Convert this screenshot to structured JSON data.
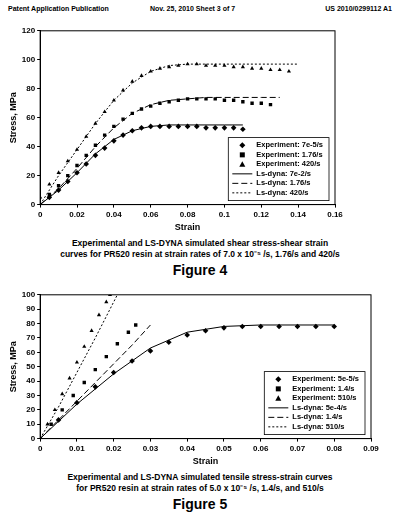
{
  "header": {
    "left": "Patent Application Publication",
    "middle": "Nov. 25, 2010  Sheet 3 of 7",
    "right": "US 2010/0299112 A1"
  },
  "figures": [
    {
      "caption": [
        "Experimental and LS-DYNA simulated shear stress-shear strain",
        "curves for PR520 resin at strain rates of 7.0 x 10⁻⁵ /s, 1.76/s and 420/s"
      ],
      "label": "Figure 4"
    },
    {
      "caption": [
        "Experimental and LS-DYNA simulated tensile stress-strain curves",
        "for PR520 resin at strain rates of 5.0 x 10⁻⁵ /s, 1.4/s, and 510/s"
      ],
      "label": "Figure 5"
    }
  ],
  "chart_data": [
    {
      "type": "scatter",
      "x_label": "Strain",
      "y_label": "Stress, MPa",
      "xlim": [
        0,
        0.16
      ],
      "xticks": [
        0,
        0.02,
        0.04,
        0.06,
        0.08,
        0.1,
        0.12,
        0.14,
        0.16
      ],
      "ylim": [
        0,
        120
      ],
      "yticks": [
        0,
        20,
        40,
        60,
        80,
        100,
        120
      ],
      "grid": false,
      "legend": "lower right",
      "series": [
        {
          "name": "Experiment: 7e-5/s",
          "type": "scatter",
          "marker": "diamond",
          "color": "#000000",
          "x": [
            0,
            0.005,
            0.01,
            0.015,
            0.02,
            0.025,
            0.03,
            0.035,
            0.04,
            0.045,
            0.05,
            0.055,
            0.06,
            0.065,
            0.07,
            0.075,
            0.08,
            0.085,
            0.09,
            0.095,
            0.1,
            0.105,
            0.11
          ],
          "values": [
            0,
            5,
            10,
            16,
            22,
            28,
            34,
            39,
            44,
            48,
            51,
            53,
            54,
            54,
            54,
            54,
            54,
            54,
            53,
            53,
            53,
            53,
            52
          ]
        },
        {
          "name": "Experiment: 1.76/s",
          "type": "scatter",
          "marker": "square",
          "color": "#000000",
          "x": [
            0,
            0.005,
            0.01,
            0.015,
            0.02,
            0.025,
            0.03,
            0.035,
            0.04,
            0.045,
            0.05,
            0.055,
            0.06,
            0.065,
            0.07,
            0.075,
            0.08,
            0.085,
            0.09,
            0.095,
            0.1,
            0.105,
            0.11,
            0.115,
            0.12,
            0.125
          ],
          "values": [
            0,
            7,
            13,
            20,
            27,
            34,
            41,
            48,
            54,
            59,
            63,
            66,
            68,
            70,
            71,
            72,
            73,
            73,
            73,
            73,
            72,
            72,
            71,
            70,
            70,
            69
          ]
        },
        {
          "name": "Experiment: 420/s",
          "type": "scatter",
          "marker": "triangle",
          "color": "#000000",
          "x": [
            0,
            0.005,
            0.01,
            0.015,
            0.02,
            0.025,
            0.03,
            0.035,
            0.04,
            0.045,
            0.05,
            0.055,
            0.06,
            0.065,
            0.07,
            0.075,
            0.08,
            0.085,
            0.09,
            0.095,
            0.1,
            0.105,
            0.11,
            0.115,
            0.12,
            0.125,
            0.13,
            0.135
          ],
          "values": [
            5,
            14,
            22,
            30,
            38,
            47,
            56,
            64,
            72,
            79,
            85,
            89,
            92,
            94,
            95,
            96,
            97,
            97,
            96,
            96,
            96,
            95,
            95,
            94,
            94,
            93,
            93,
            92
          ]
        },
        {
          "name": "Ls-dyna: 7e-2/s",
          "type": "line",
          "line_style": "solid",
          "color": "#000000",
          "x": [
            0,
            0.01,
            0.02,
            0.03,
            0.04,
            0.05,
            0.06,
            0.07,
            0.08,
            0.09,
            0.1,
            0.11
          ],
          "values": [
            0,
            10,
            22,
            35,
            45,
            51,
            54,
            55,
            55,
            55,
            55,
            55
          ]
        },
        {
          "name": "Ls-dyna: 1.76/s",
          "type": "line",
          "line_style": "dashed",
          "color": "#000000",
          "x": [
            0,
            0.01,
            0.02,
            0.03,
            0.04,
            0.05,
            0.06,
            0.07,
            0.08,
            0.09,
            0.1,
            0.11,
            0.12,
            0.13
          ],
          "values": [
            0,
            11,
            25,
            40,
            53,
            63,
            69,
            72,
            73,
            74,
            74,
            74,
            74,
            74
          ]
        },
        {
          "name": "Ls-dyna: 420/s",
          "type": "line",
          "line_style": "dotted",
          "color": "#000000",
          "x": [
            0,
            0.01,
            0.02,
            0.03,
            0.04,
            0.05,
            0.06,
            0.07,
            0.08,
            0.09,
            0.1,
            0.11,
            0.12,
            0.13,
            0.14
          ],
          "values": [
            0,
            20,
            38,
            56,
            72,
            84,
            92,
            96,
            97,
            97,
            97,
            97,
            97,
            97,
            97
          ]
        }
      ]
    },
    {
      "type": "scatter",
      "x_label": "Strain",
      "y_label": "Stress, MPa",
      "xlim": [
        0,
        0.09
      ],
      "xticks": [
        0,
        0.01,
        0.02,
        0.03,
        0.04,
        0.05,
        0.06,
        0.07,
        0.08,
        0.09
      ],
      "ylim": [
        0,
        100
      ],
      "yticks": [
        0,
        10,
        20,
        30,
        40,
        50,
        60,
        70,
        80,
        90,
        100
      ],
      "grid": false,
      "legend": "lower right",
      "series": [
        {
          "name": "Experiment: 5e-5/s",
          "type": "scatter",
          "marker": "diamond",
          "color": "#000000",
          "x": [
            0,
            0.005,
            0.01,
            0.015,
            0.02,
            0.025,
            0.03,
            0.035,
            0.04,
            0.045,
            0.05,
            0.055,
            0.06,
            0.065,
            0.07,
            0.075,
            0.08
          ],
          "values": [
            0,
            13,
            25,
            36,
            46,
            54,
            61,
            67,
            72,
            75,
            77,
            78,
            78,
            78,
            78,
            78,
            78
          ]
        },
        {
          "name": "Experiment: 1.4/s",
          "type": "scatter",
          "marker": "square",
          "color": "#000000",
          "x": [
            0,
            0.003,
            0.006,
            0.009,
            0.012,
            0.015,
            0.018,
            0.021,
            0.024,
            0.026
          ],
          "values": [
            0,
            10,
            20,
            30,
            39,
            48,
            57,
            66,
            74,
            79
          ]
        },
        {
          "name": "Experiment: 510/s",
          "type": "scatter",
          "marker": "triangle",
          "color": "#000000",
          "x": [
            0,
            0.002,
            0.004,
            0.006,
            0.008,
            0.01,
            0.012,
            0.014,
            0.016,
            0.018,
            0.019
          ],
          "values": [
            0,
            10,
            20,
            31,
            42,
            53,
            64,
            75,
            86,
            95,
            100
          ]
        },
        {
          "name": "Ls-dyna: 5e-4/s",
          "type": "line",
          "line_style": "solid",
          "color": "#000000",
          "x": [
            0,
            0.01,
            0.02,
            0.03,
            0.04,
            0.05,
            0.06,
            0.07,
            0.08
          ],
          "values": [
            0,
            24,
            45,
            63,
            74,
            78,
            79,
            79,
            79
          ]
        },
        {
          "name": "Ls-dyna: 1.4/s",
          "type": "line",
          "line_style": "dashed",
          "color": "#000000",
          "x": [
            0,
            0.005,
            0.01,
            0.015,
            0.02,
            0.025,
            0.03
          ],
          "values": [
            0,
            13,
            26,
            39,
            52,
            65,
            79
          ]
        },
        {
          "name": "Ls-dyna: 510/s",
          "type": "line",
          "line_style": "dotted",
          "color": "#000000",
          "x": [
            0,
            0.005,
            0.01,
            0.015,
            0.02,
            0.021
          ],
          "values": [
            0,
            22,
            46,
            70,
            95,
            100
          ]
        }
      ]
    }
  ]
}
